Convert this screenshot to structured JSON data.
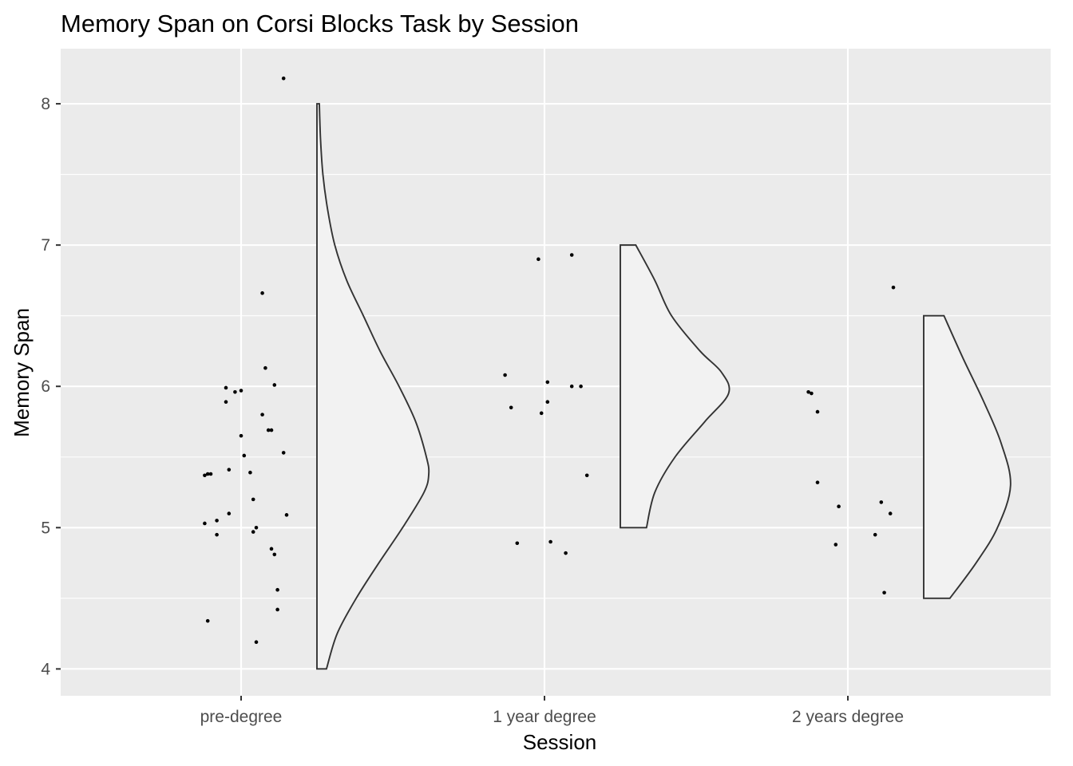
{
  "chart_data": {
    "type": "raincloud",
    "title": "Memory Span on Corsi Blocks Task by Session",
    "xlabel": "Session",
    "ylabel": "Memory Span",
    "categories": [
      "pre-degree",
      "1 year degree",
      "2 years degree"
    ],
    "ylim": [
      3.81,
      8.39
    ],
    "yticks": [
      4,
      5,
      6,
      7,
      8
    ],
    "yticks_minor": [
      4.5,
      5.5,
      6.5,
      7.5
    ],
    "grid": true,
    "colors": {
      "panel": "#ebebeb",
      "violin_fill": "#f2f2f2",
      "violin_stroke": "#333333",
      "points": "#000000"
    },
    "series": [
      {
        "category": "pre-degree",
        "violin": {
          "range": [
            4,
            8
          ],
          "density_shape": [
            [
              4.0,
              0.08
            ],
            [
              4.25,
              0.17
            ],
            [
              4.5,
              0.33
            ],
            [
              4.75,
              0.52
            ],
            [
              5.0,
              0.72
            ],
            [
              5.25,
              0.9
            ],
            [
              5.38,
              0.94
            ],
            [
              5.5,
              0.92
            ],
            [
              5.75,
              0.83
            ],
            [
              6.0,
              0.69
            ],
            [
              6.25,
              0.53
            ],
            [
              6.5,
              0.39
            ],
            [
              6.75,
              0.25
            ],
            [
              7.0,
              0.15
            ],
            [
              7.25,
              0.09
            ],
            [
              7.5,
              0.05
            ],
            [
              7.75,
              0.03
            ],
            [
              8.0,
              0.02
            ]
          ]
        },
        "points": [
          {
            "x": -0.12,
            "y": 5.37
          },
          {
            "x": -0.11,
            "y": 5.38
          },
          {
            "x": -0.1,
            "y": 5.38
          },
          {
            "x": -0.12,
            "y": 5.03
          },
          {
            "x": -0.08,
            "y": 5.05
          },
          {
            "x": -0.08,
            "y": 4.95
          },
          {
            "x": -0.11,
            "y": 4.34
          },
          {
            "x": -0.05,
            "y": 5.99
          },
          {
            "x": -0.05,
            "y": 5.89
          },
          {
            "x": -0.04,
            "y": 5.41
          },
          {
            "x": -0.04,
            "y": 5.1
          },
          {
            "x": -0.02,
            "y": 5.96
          },
          {
            "x": 0.0,
            "y": 5.97
          },
          {
            "x": 0.0,
            "y": 5.65
          },
          {
            "x": 0.01,
            "y": 5.51
          },
          {
            "x": 0.03,
            "y": 5.39
          },
          {
            "x": 0.04,
            "y": 5.2
          },
          {
            "x": 0.05,
            "y": 5.0
          },
          {
            "x": 0.04,
            "y": 4.97
          },
          {
            "x": 0.05,
            "y": 4.19
          },
          {
            "x": 0.07,
            "y": 5.8
          },
          {
            "x": 0.07,
            "y": 6.66
          },
          {
            "x": 0.08,
            "y": 6.13
          },
          {
            "x": 0.09,
            "y": 5.69
          },
          {
            "x": 0.1,
            "y": 5.69
          },
          {
            "x": 0.11,
            "y": 6.01
          },
          {
            "x": 0.1,
            "y": 4.85
          },
          {
            "x": 0.11,
            "y": 4.81
          },
          {
            "x": 0.12,
            "y": 4.56
          },
          {
            "x": 0.12,
            "y": 4.42
          },
          {
            "x": 0.14,
            "y": 5.53
          },
          {
            "x": 0.15,
            "y": 5.09
          },
          {
            "x": 0.14,
            "y": 8.18
          }
        ]
      },
      {
        "category": "1 year degree",
        "violin": {
          "range": [
            5,
            7
          ],
          "density_shape": [
            [
              5.0,
              0.22
            ],
            [
              5.25,
              0.29
            ],
            [
              5.5,
              0.46
            ],
            [
              5.75,
              0.71
            ],
            [
              5.95,
              0.91
            ],
            [
              6.1,
              0.85
            ],
            [
              6.25,
              0.67
            ],
            [
              6.5,
              0.43
            ],
            [
              6.75,
              0.29
            ],
            [
              7.0,
              0.13
            ]
          ]
        },
        "points": [
          {
            "x": -0.13,
            "y": 6.08
          },
          {
            "x": -0.11,
            "y": 5.85
          },
          {
            "x": -0.09,
            "y": 4.89
          },
          {
            "x": -0.02,
            "y": 6.9
          },
          {
            "x": -0.01,
            "y": 5.81
          },
          {
            "x": 0.01,
            "y": 6.03
          },
          {
            "x": 0.01,
            "y": 5.89
          },
          {
            "x": 0.02,
            "y": 4.9
          },
          {
            "x": 0.07,
            "y": 4.82
          },
          {
            "x": 0.09,
            "y": 6.93
          },
          {
            "x": 0.09,
            "y": 6.0
          },
          {
            "x": 0.12,
            "y": 6.0
          },
          {
            "x": 0.14,
            "y": 5.37
          }
        ]
      },
      {
        "category": "2 years degree",
        "violin": {
          "range": [
            4.5,
            6.5
          ],
          "density_shape": [
            [
              4.5,
              0.22
            ],
            [
              4.75,
              0.44
            ],
            [
              5.0,
              0.62
            ],
            [
              5.3,
              0.73
            ],
            [
              5.6,
              0.65
            ],
            [
              5.9,
              0.5
            ],
            [
              6.2,
              0.33
            ],
            [
              6.5,
              0.17
            ]
          ]
        },
        "points": [
          {
            "x": -0.13,
            "y": 5.96
          },
          {
            "x": -0.12,
            "y": 5.95
          },
          {
            "x": -0.1,
            "y": 5.82
          },
          {
            "x": -0.1,
            "y": 5.32
          },
          {
            "x": -0.03,
            "y": 5.15
          },
          {
            "x": -0.04,
            "y": 4.88
          },
          {
            "x": 0.09,
            "y": 4.95
          },
          {
            "x": 0.11,
            "y": 5.18
          },
          {
            "x": 0.12,
            "y": 4.54
          },
          {
            "x": 0.14,
            "y": 5.1
          },
          {
            "x": 0.15,
            "y": 6.7
          }
        ]
      }
    ]
  }
}
